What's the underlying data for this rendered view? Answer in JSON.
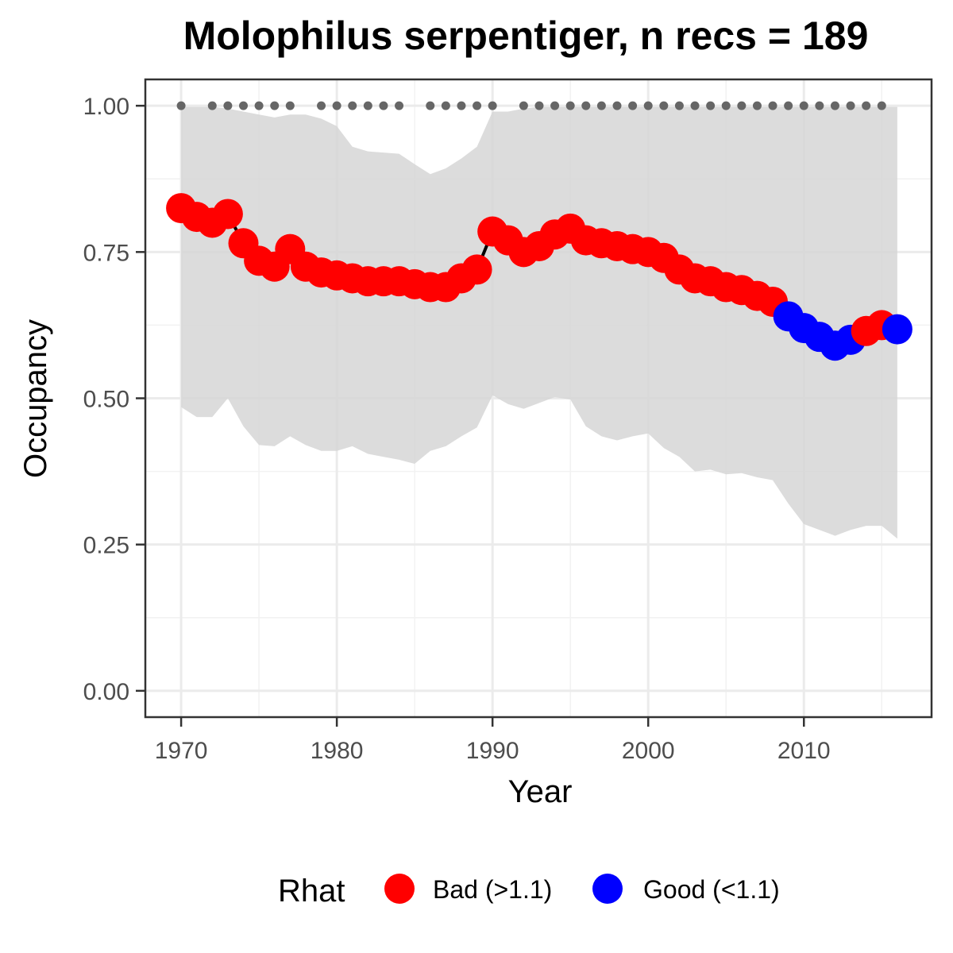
{
  "chart_data": {
    "type": "line",
    "title": "Molophilus serpentiger, n recs = 189",
    "xlabel": "Year",
    "ylabel": "Occupancy",
    "xlim": [
      1967.7,
      2018.2
    ],
    "ylim": [
      -0.045,
      1.045
    ],
    "x_ticks": [
      1970,
      1980,
      1990,
      2000,
      2010
    ],
    "x_tick_labels": [
      "1970",
      "1980",
      "1990",
      "2000",
      "2010"
    ],
    "y_ticks": [
      0,
      0.25,
      0.5,
      0.75,
      1.0
    ],
    "y_tick_labels": [
      "0.00",
      "0.25",
      "0.50",
      "0.75",
      "1.00"
    ],
    "grid": true,
    "legend": {
      "title": "Rhat",
      "position": "bottom",
      "entries": [
        {
          "label": "Bad (>1.1)",
          "color": "#ff0000"
        },
        {
          "label": "Good (<1.1)",
          "color": "#0000ff"
        }
      ]
    },
    "colors": {
      "bad": "#ff0000",
      "good": "#0000ff",
      "ribbon": "#d6d6d6",
      "line": "#000000",
      "record_dots": "#666666"
    },
    "series": [
      {
        "x": [
          1970,
          1971,
          1972,
          1973,
          1974,
          1975,
          1976,
          1977,
          1978,
          1979,
          1980,
          1981,
          1982,
          1983,
          1984,
          1985,
          1986,
          1987,
          1988,
          1989,
          1990,
          1991,
          1992,
          1993,
          1994,
          1995,
          1996,
          1997,
          1998,
          1999,
          2000,
          2001,
          2002,
          2003,
          2004,
          2005,
          2006,
          2007,
          2008,
          2009,
          2010,
          2011,
          2012,
          2013,
          2014,
          2015,
          2016
        ],
        "values": [
          0.825,
          0.81,
          0.8,
          0.815,
          0.765,
          0.735,
          0.725,
          0.755,
          0.725,
          0.715,
          0.71,
          0.705,
          0.7,
          0.7,
          0.7,
          0.695,
          0.69,
          0.69,
          0.705,
          0.72,
          0.785,
          0.77,
          0.75,
          0.76,
          0.78,
          0.79,
          0.77,
          0.765,
          0.76,
          0.755,
          0.75,
          0.74,
          0.72,
          0.705,
          0.7,
          0.69,
          0.685,
          0.675,
          0.665,
          0.64,
          0.62,
          0.605,
          0.59,
          0.6,
          0.615,
          0.625,
          0.618
        ],
        "rhat": [
          "bad",
          "bad",
          "bad",
          "bad",
          "bad",
          "bad",
          "bad",
          "bad",
          "bad",
          "bad",
          "bad",
          "bad",
          "bad",
          "bad",
          "bad",
          "bad",
          "bad",
          "bad",
          "bad",
          "bad",
          "bad",
          "bad",
          "bad",
          "bad",
          "bad",
          "bad",
          "bad",
          "bad",
          "bad",
          "bad",
          "bad",
          "bad",
          "bad",
          "bad",
          "bad",
          "bad",
          "bad",
          "bad",
          "bad",
          "good",
          "good",
          "good",
          "good",
          "good",
          "bad",
          "bad",
          "good"
        ],
        "lower": [
          0.485,
          0.468,
          0.468,
          0.5,
          0.452,
          0.42,
          0.418,
          0.435,
          0.42,
          0.41,
          0.41,
          0.418,
          0.405,
          0.4,
          0.395,
          0.388,
          0.41,
          0.418,
          0.435,
          0.45,
          0.505,
          0.49,
          0.482,
          0.492,
          0.502,
          0.498,
          0.452,
          0.435,
          0.428,
          0.435,
          0.44,
          0.415,
          0.4,
          0.375,
          0.378,
          0.37,
          0.372,
          0.365,
          0.36,
          0.32,
          0.285,
          0.275,
          0.265,
          0.275,
          0.282,
          0.282,
          0.26
        ],
        "upper": [
          0.998,
          0.998,
          0.998,
          0.995,
          0.99,
          0.985,
          0.98,
          0.985,
          0.985,
          0.978,
          0.965,
          0.93,
          0.922,
          0.92,
          0.918,
          0.9,
          0.883,
          0.893,
          0.91,
          0.93,
          0.99,
          0.99,
          0.995,
          0.998,
          0.998,
          0.998,
          0.998,
          0.998,
          0.998,
          0.998,
          0.998,
          0.998,
          0.998,
          0.998,
          0.998,
          0.998,
          0.998,
          0.998,
          0.998,
          0.998,
          0.998,
          0.998,
          0.998,
          0.998,
          0.998,
          0.998,
          0.998
        ]
      }
    ],
    "record_years": [
      1970,
      1972,
      1973,
      1974,
      1975,
      1976,
      1977,
      1979,
      1980,
      1981,
      1982,
      1983,
      1984,
      1986,
      1987,
      1988,
      1989,
      1990,
      1992,
      1993,
      1994,
      1995,
      1996,
      1997,
      1998,
      1999,
      2000,
      2001,
      2002,
      2003,
      2004,
      2005,
      2006,
      2007,
      2008,
      2009,
      2010,
      2011,
      2012,
      2013,
      2014,
      2015
    ],
    "record_level": 1.0
  }
}
